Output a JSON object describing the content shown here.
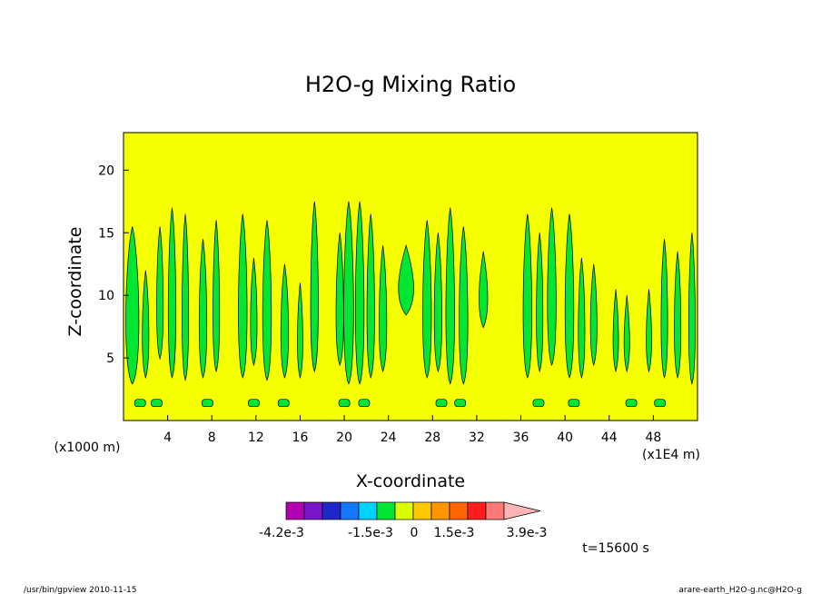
{
  "chart_data": {
    "type": "heatmap",
    "title": "H2O-g Mixing Ratio",
    "xlabel": "X-coordinate",
    "ylabel": "Z-coordinate",
    "x_unit": "(x1E4 m)",
    "y_unit": "(x1000 m)",
    "xlim": [
      0,
      52
    ],
    "ylim": [
      0,
      23
    ],
    "x_ticks": [
      4,
      8,
      12,
      16,
      20,
      24,
      28,
      32,
      36,
      40,
      44,
      48
    ],
    "y_ticks": [
      5,
      10,
      15,
      20
    ],
    "colorbar": {
      "colors": [
        "#b000b0",
        "#7a14c8",
        "#1e28c8",
        "#1478ff",
        "#00d2ff",
        "#00e632",
        "#dcff00",
        "#ffc800",
        "#ff9600",
        "#ff6400",
        "#ff1e1e",
        "#ff7878",
        "#ffb4b4"
      ],
      "tick_labels": [
        "-4.2e-3",
        "-1.5e-3",
        "0",
        "1.5e-3",
        "3.9e-3"
      ]
    },
    "field": {
      "background_level": "0 to 1.5e-3",
      "background_color": "#f5ff00",
      "feature_level": "-1.5e-3 to 0",
      "feature_color": "#00e632",
      "plumes": [
        {
          "x": 0.8,
          "w": 1.2,
          "base": 3.5,
          "top": 15.5
        },
        {
          "x": 2.0,
          "w": 0.6,
          "base": 4.0,
          "top": 12.0
        },
        {
          "x": 3.3,
          "w": 0.6,
          "base": 5.5,
          "top": 15.5
        },
        {
          "x": 4.4,
          "w": 0.7,
          "base": 4.0,
          "top": 17.0
        },
        {
          "x": 5.6,
          "w": 0.6,
          "base": 3.8,
          "top": 16.5
        },
        {
          "x": 7.2,
          "w": 0.7,
          "base": 4.0,
          "top": 14.5
        },
        {
          "x": 8.4,
          "w": 0.6,
          "base": 4.5,
          "top": 16.0
        },
        {
          "x": 10.8,
          "w": 0.8,
          "base": 4.0,
          "top": 16.5
        },
        {
          "x": 11.8,
          "w": 0.6,
          "base": 5.0,
          "top": 13.0
        },
        {
          "x": 13.0,
          "w": 0.8,
          "base": 3.8,
          "top": 16.0
        },
        {
          "x": 14.6,
          "w": 0.7,
          "base": 4.0,
          "top": 12.5
        },
        {
          "x": 16.0,
          "w": 0.5,
          "base": 4.0,
          "top": 11.0
        },
        {
          "x": 17.3,
          "w": 0.7,
          "base": 4.5,
          "top": 17.5
        },
        {
          "x": 19.6,
          "w": 0.7,
          "base": 5.0,
          "top": 15.0
        },
        {
          "x": 20.4,
          "w": 0.9,
          "base": 3.5,
          "top": 17.5
        },
        {
          "x": 21.4,
          "w": 0.8,
          "base": 3.5,
          "top": 17.5
        },
        {
          "x": 22.4,
          "w": 0.7,
          "base": 4.0,
          "top": 16.5
        },
        {
          "x": 23.5,
          "w": 0.7,
          "base": 4.5,
          "top": 14.0
        },
        {
          "x": 25.6,
          "w": 1.4,
          "base": 9.0,
          "top": 14.0
        },
        {
          "x": 27.5,
          "w": 0.8,
          "base": 4.0,
          "top": 16.0
        },
        {
          "x": 28.5,
          "w": 0.7,
          "base": 4.5,
          "top": 15.0
        },
        {
          "x": 29.6,
          "w": 0.8,
          "base": 3.5,
          "top": 17.0
        },
        {
          "x": 30.8,
          "w": 0.8,
          "base": 3.5,
          "top": 15.5
        },
        {
          "x": 32.6,
          "w": 0.8,
          "base": 8.0,
          "top": 13.5
        },
        {
          "x": 36.6,
          "w": 0.8,
          "base": 4.0,
          "top": 16.5
        },
        {
          "x": 37.7,
          "w": 0.6,
          "base": 4.5,
          "top": 15.0
        },
        {
          "x": 38.8,
          "w": 0.8,
          "base": 5.0,
          "top": 17.0
        },
        {
          "x": 40.4,
          "w": 0.8,
          "base": 4.0,
          "top": 16.5
        },
        {
          "x": 41.5,
          "w": 0.6,
          "base": 4.0,
          "top": 13.0
        },
        {
          "x": 42.6,
          "w": 0.6,
          "base": 5.0,
          "top": 12.5
        },
        {
          "x": 44.6,
          "w": 0.5,
          "base": 4.5,
          "top": 10.5
        },
        {
          "x": 45.6,
          "w": 0.5,
          "base": 4.5,
          "top": 10.0
        },
        {
          "x": 47.6,
          "w": 0.5,
          "base": 4.5,
          "top": 10.5
        },
        {
          "x": 49.0,
          "w": 0.6,
          "base": 4.0,
          "top": 14.5
        },
        {
          "x": 50.2,
          "w": 0.6,
          "base": 4.0,
          "top": 13.5
        },
        {
          "x": 51.5,
          "w": 0.6,
          "base": 3.5,
          "top": 15.0
        }
      ],
      "low_patches_x": [
        1.5,
        3.0,
        7.6,
        11.8,
        14.5,
        20.0,
        21.8,
        28.8,
        30.5,
        37.6,
        40.8,
        46.0,
        48.6
      ],
      "low_patch_z": 1.4
    }
  },
  "time_label": "t=15600 s",
  "footer": {
    "left": "/usr/bin/gpview  2010-11-15",
    "right": "arare-earth_H2O-g.nc@H2O-g"
  }
}
